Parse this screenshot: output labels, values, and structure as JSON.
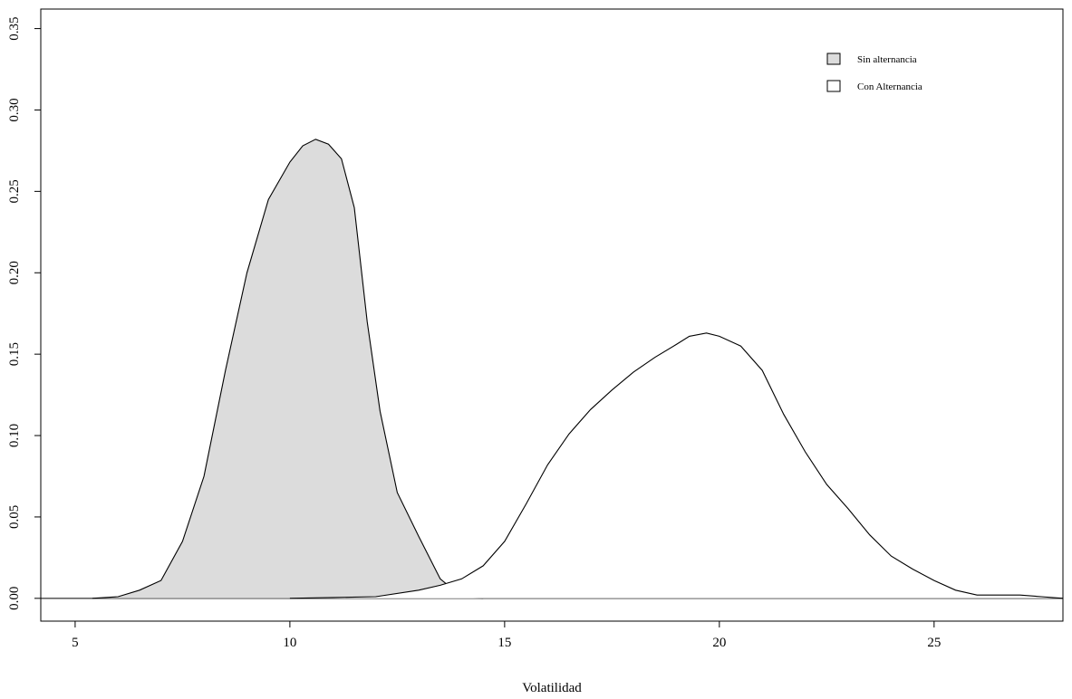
{
  "chart_data": {
    "type": "area",
    "xlabel": "Volatilidad",
    "ylabel": "",
    "xlim": [
      4.2,
      28.0
    ],
    "ylim": [
      -0.014,
      0.362
    ],
    "x_ticks": [
      {
        "value": 5,
        "label": "5"
      },
      {
        "value": 10,
        "label": "10"
      },
      {
        "value": 15,
        "label": "15"
      },
      {
        "value": 20,
        "label": "20"
      },
      {
        "value": 25,
        "label": "25"
      }
    ],
    "y_ticks": [
      {
        "value": 0.0,
        "label": "0.00"
      },
      {
        "value": 0.05,
        "label": "0.05"
      },
      {
        "value": 0.1,
        "label": "0.10"
      },
      {
        "value": 0.15,
        "label": "0.15"
      },
      {
        "value": 0.2,
        "label": "0.20"
      },
      {
        "value": 0.25,
        "label": "0.25"
      },
      {
        "value": 0.3,
        "label": "0.30"
      },
      {
        "value": 0.35,
        "label": "0.35"
      }
    ],
    "baseline": 0,
    "legend_position": "top-right",
    "series": [
      {
        "name": "Sin alternancia",
        "fill": "#dcdcdc",
        "stroke": "#000000",
        "points": [
          [
            5.4,
            0.0
          ],
          [
            6.0,
            0.001
          ],
          [
            6.5,
            0.005
          ],
          [
            7.0,
            0.011
          ],
          [
            7.5,
            0.035
          ],
          [
            8.0,
            0.075
          ],
          [
            8.5,
            0.14
          ],
          [
            9.0,
            0.2
          ],
          [
            9.5,
            0.245
          ],
          [
            10.0,
            0.268
          ],
          [
            10.3,
            0.278
          ],
          [
            10.6,
            0.282
          ],
          [
            10.9,
            0.279
          ],
          [
            11.2,
            0.27
          ],
          [
            11.5,
            0.24
          ],
          [
            11.8,
            0.17
          ],
          [
            12.1,
            0.115
          ],
          [
            12.5,
            0.065
          ],
          [
            13.0,
            0.038
          ],
          [
            13.5,
            0.012
          ],
          [
            14.0,
            0.001
          ],
          [
            14.5,
            0.0
          ]
        ]
      },
      {
        "name": "Con Alternancia",
        "fill": "#ffffff",
        "stroke": "#000000",
        "points": [
          [
            10.0,
            0.0
          ],
          [
            11.0,
            0.0005
          ],
          [
            12.0,
            0.001
          ],
          [
            13.0,
            0.005
          ],
          [
            13.5,
            0.008
          ],
          [
            14.0,
            0.012
          ],
          [
            14.5,
            0.02
          ],
          [
            15.0,
            0.035
          ],
          [
            15.5,
            0.058
          ],
          [
            16.0,
            0.082
          ],
          [
            16.5,
            0.101
          ],
          [
            17.0,
            0.116
          ],
          [
            17.5,
            0.128
          ],
          [
            18.0,
            0.139
          ],
          [
            18.5,
            0.148
          ],
          [
            19.0,
            0.156
          ],
          [
            19.3,
            0.161
          ],
          [
            19.7,
            0.163
          ],
          [
            20.0,
            0.161
          ],
          [
            20.5,
            0.155
          ],
          [
            21.0,
            0.14
          ],
          [
            21.5,
            0.113
          ],
          [
            22.0,
            0.09
          ],
          [
            22.5,
            0.07
          ],
          [
            23.0,
            0.055
          ],
          [
            23.5,
            0.039
          ],
          [
            24.0,
            0.026
          ],
          [
            24.5,
            0.018
          ],
          [
            25.0,
            0.011
          ],
          [
            25.5,
            0.005
          ],
          [
            26.0,
            0.002
          ],
          [
            26.5,
            0.002
          ],
          [
            27.0,
            0.002
          ],
          [
            27.5,
            0.001
          ],
          [
            28.0,
            0.0
          ]
        ]
      }
    ]
  }
}
